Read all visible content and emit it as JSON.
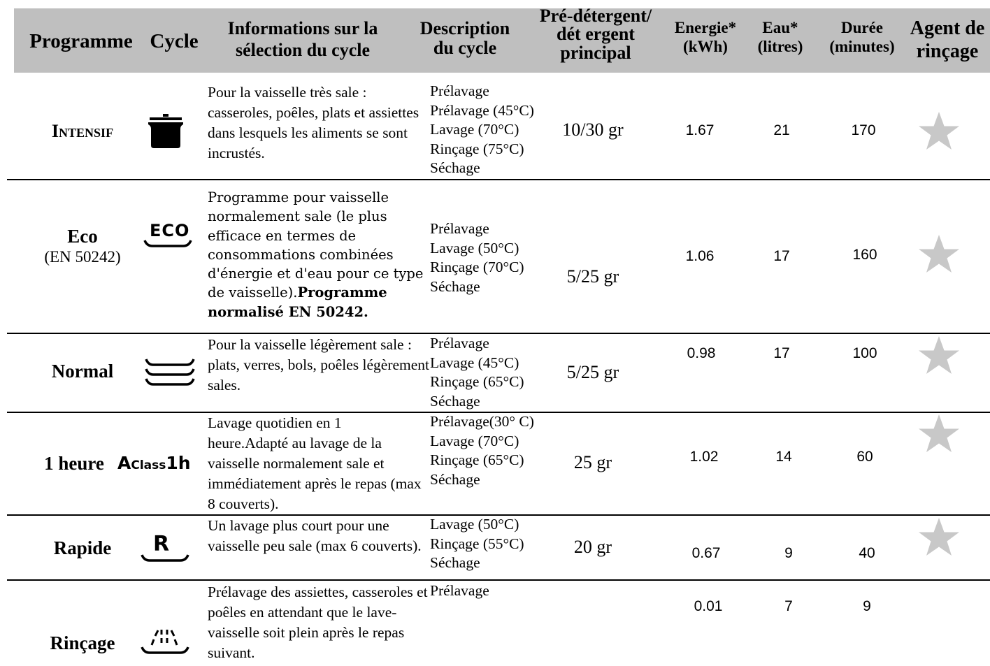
{
  "headers": {
    "programme": "Programme",
    "cycle": "Cycle",
    "info_l1": "Informations sur la",
    "info_l2": "sélection du cycle",
    "desc_l1": "Description",
    "desc_l2": "du cycle",
    "det_l1": "Pré-détergent/",
    "det_l2": "dét ergent",
    "det_l3": "principal",
    "energy_l1": "Energie*",
    "energy_l2": "(kWh)",
    "water_l1": "Eau*",
    "water_l2": "(litres)",
    "duration_l1": "Durée",
    "duration_l2": "(minutes)",
    "rinse_l1": "Agent de",
    "rinse_l2": "rinçage"
  },
  "rows": [
    {
      "programme": "Intensif",
      "programme_sub": "",
      "cycle_icon": "pot-icon",
      "info": "Pour la vaisselle très sale : casseroles, poêles, plats et assiettes dans lesquels les aliments se sont incrustés.",
      "info_bold": "",
      "desc": [
        "Prélavage",
        "Prélavage (45°C)",
        "Lavage (70°C)",
        "Rinçage (75°C)",
        "Séchage"
      ],
      "detergent": "10/30 gr",
      "energy": "1.67",
      "water": "21",
      "duration": "170",
      "rinse_agent": true
    },
    {
      "programme": "Eco",
      "programme_sub": "(EN 50242)",
      "cycle_icon": "eco-icon",
      "cycle_icon_text": "ECO",
      "info": "Programme pour vaisselle normalement sale (le plus  efficace en termes de consommations combinées d'énergie et d'eau pour ce type de vaisselle).",
      "info_bold": "Programme normalisé EN 50242.",
      "desc": [
        "Prélavage",
        "Lavage (50°C)",
        "Rinçage (70°C)",
        "Séchage"
      ],
      "detergent": "5/25 gr",
      "energy": "1.06",
      "water": "17",
      "duration": "160",
      "rinse_agent": true
    },
    {
      "programme": "Normal",
      "programme_sub": "",
      "cycle_icon": "stacked-plates-icon",
      "info": "Pour la vaisselle légèrement sale : plats, verres, bols, poêles légèrement sales.",
      "info_bold": "",
      "desc": [
        "Prélavage",
        "Lavage (45°C)",
        "Rinçage (65°C)",
        "Séchage"
      ],
      "detergent": "5/25 gr",
      "energy": "0.98",
      "water": "17",
      "duration": "100",
      "rinse_agent": true
    },
    {
      "programme": "1 heure",
      "programme_sub": "",
      "cycle_icon": "aclass-1h-icon",
      "cycle_icon_text_a": "A",
      "cycle_icon_text_class": "Class",
      "cycle_icon_text_1h": "1h",
      "info": "Lavage quotidien en 1 heure.Adapté au lavage de la vaisselle normalement sale et immédiatement après le repas (max 8 couverts).",
      "info_bold": "",
      "desc": [
        "Prélavage(30° C)",
        "Lavage (70°C)",
        "Rinçage (65°C)",
        "Séchage"
      ],
      "detergent": "25 gr",
      "energy": "1.02",
      "water": "14",
      "duration": "60",
      "rinse_agent": true
    },
    {
      "programme": "Rapide",
      "programme_sub": "",
      "cycle_icon": "rapid-r-icon",
      "cycle_icon_text": "R",
      "info": "Un lavage plus court pour une vaisselle peu sale (max 6 couverts).",
      "info_bold": "",
      "desc": [
        "Lavage (50°C)",
        "Rinçage (55°C)",
        "Séchage"
      ],
      "detergent": "20 gr",
      "energy": "0.67",
      "water": "9",
      "duration": "40",
      "rinse_agent": true
    },
    {
      "programme": "Rinçage",
      "programme_sub": "",
      "cycle_icon": "spray-icon",
      "info": "Prélavage des assiettes, casseroles et poêles en attendant que le lave-vaisselle soit plein après le repas suivant.",
      "info_bold": "",
      "desc": [
        "Prélavage"
      ],
      "detergent": "",
      "energy": "0.01",
      "water": "7",
      "duration": "9",
      "rinse_agent": false
    }
  ],
  "colors": {
    "header_bg": "#bfbfbf",
    "star": "#c8c8c8"
  }
}
